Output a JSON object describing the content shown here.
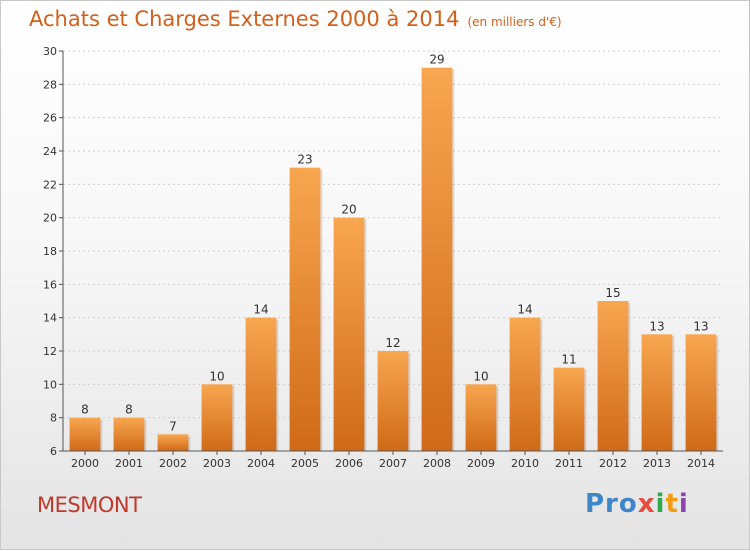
{
  "header": {
    "title": "Achats et Charges Externes 2000 à 2014",
    "unit": "(en milliers d'€)"
  },
  "place": "MESMONT",
  "logo": [
    "Pro",
    "x",
    "i",
    "t",
    "i"
  ],
  "colors": {
    "bar_light": "#f8a650",
    "bar_dark": "#cf6a18",
    "title": "#d2601a",
    "place": "#c0392b"
  },
  "chart_data": {
    "type": "bar",
    "title": "Achats et Charges Externes 2000 à 2014",
    "subtitle": "(en milliers d'€)",
    "categories": [
      "2000",
      "2001",
      "2002",
      "2003",
      "2004",
      "2005",
      "2006",
      "2007",
      "2008",
      "2009",
      "2010",
      "2011",
      "2012",
      "2013",
      "2014"
    ],
    "values": [
      8,
      8,
      7,
      10,
      14,
      23,
      20,
      12,
      29,
      10,
      14,
      11,
      15,
      13,
      13
    ],
    "ylim": [
      6,
      30
    ],
    "yticks": [
      6,
      8,
      10,
      12,
      14,
      16,
      18,
      20,
      22,
      24,
      26,
      28,
      30
    ],
    "grid": true,
    "data_labels": true
  }
}
